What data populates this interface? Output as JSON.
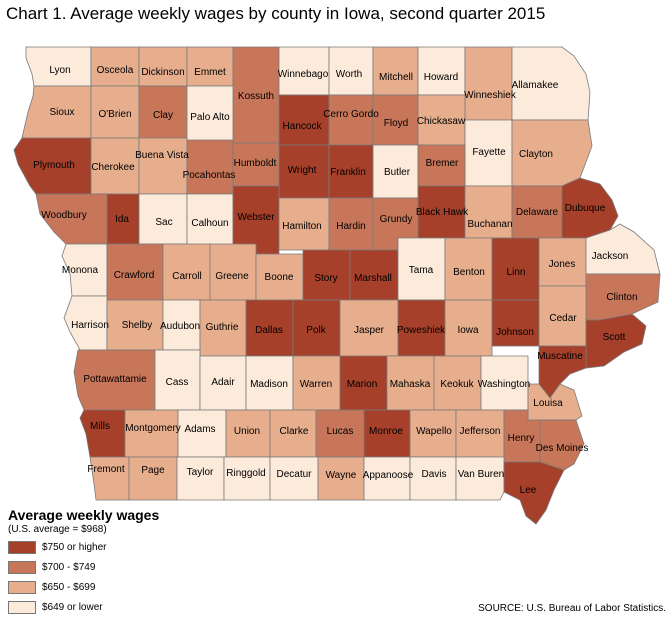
{
  "title": "Chart 1. Average weekly wages by county in Iowa, second quarter 2015",
  "legend": {
    "title": "Average weekly wages",
    "subtitle": "(U.S. average = $968)",
    "items": [
      {
        "label": "$750 or higher",
        "color": "#a6402a"
      },
      {
        "label": "$700 - $749",
        "color": "#c8765a"
      },
      {
        "label": "$650 - $699",
        "color": "#e7ae8e"
      },
      {
        "label": "$649 or lower",
        "color": "#fceadb"
      }
    ]
  },
  "source": "SOURCE: U.S. Bureau of Labor Statistics.",
  "counties": [
    {
      "name": "Lyon",
      "class": 3
    },
    {
      "name": "Osceola",
      "class": 2
    },
    {
      "name": "Dickinson",
      "class": 2
    },
    {
      "name": "Emmet",
      "class": 2
    },
    {
      "name": "Kossuth",
      "class": 1
    },
    {
      "name": "Winnebago",
      "class": 3
    },
    {
      "name": "Worth",
      "class": 3
    },
    {
      "name": "Mitchell",
      "class": 2
    },
    {
      "name": "Howard",
      "class": 3
    },
    {
      "name": "Winneshiek",
      "class": 2
    },
    {
      "name": "Allamakee",
      "class": 3
    },
    {
      "name": "Sioux",
      "class": 2
    },
    {
      "name": "O'Brien",
      "class": 2
    },
    {
      "name": "Clay",
      "class": 1
    },
    {
      "name": "Palo Alto",
      "class": 3
    },
    {
      "name": "Hancock",
      "class": 0
    },
    {
      "name": "Cerro Gordo",
      "class": 1
    },
    {
      "name": "Floyd",
      "class": 1
    },
    {
      "name": "Chickasaw",
      "class": 2
    },
    {
      "name": "Fayette",
      "class": 3
    },
    {
      "name": "Clayton",
      "class": 2
    },
    {
      "name": "Plymouth",
      "class": 0
    },
    {
      "name": "Cherokee",
      "class": 2
    },
    {
      "name": "Buena Vista",
      "class": 2
    },
    {
      "name": "Pocahontas",
      "class": 1
    },
    {
      "name": "Humboldt",
      "class": 1
    },
    {
      "name": "Wright",
      "class": 0
    },
    {
      "name": "Franklin",
      "class": 0
    },
    {
      "name": "Butler",
      "class": 3
    },
    {
      "name": "Bremer",
      "class": 1
    },
    {
      "name": "Black Hawk",
      "class": 0
    },
    {
      "name": "Buchanan",
      "class": 2
    },
    {
      "name": "Delaware",
      "class": 1
    },
    {
      "name": "Dubuque",
      "class": 0
    },
    {
      "name": "Woodbury",
      "class": 1
    },
    {
      "name": "Ida",
      "class": 0
    },
    {
      "name": "Sac",
      "class": 3
    },
    {
      "name": "Calhoun",
      "class": 3
    },
    {
      "name": "Webster",
      "class": 0
    },
    {
      "name": "Hamilton",
      "class": 2
    },
    {
      "name": "Hardin",
      "class": 1
    },
    {
      "name": "Grundy",
      "class": 1
    },
    {
      "name": "Monona",
      "class": 3
    },
    {
      "name": "Crawford",
      "class": 1
    },
    {
      "name": "Carroll",
      "class": 2
    },
    {
      "name": "Greene",
      "class": 2
    },
    {
      "name": "Boone",
      "class": 2
    },
    {
      "name": "Story",
      "class": 0
    },
    {
      "name": "Marshall",
      "class": 0
    },
    {
      "name": "Tama",
      "class": 3
    },
    {
      "name": "Benton",
      "class": 2
    },
    {
      "name": "Linn",
      "class": 0
    },
    {
      "name": "Jones",
      "class": 2
    },
    {
      "name": "Jackson",
      "class": 3
    },
    {
      "name": "Clinton",
      "class": 1
    },
    {
      "name": "Harrison",
      "class": 3
    },
    {
      "name": "Shelby",
      "class": 2
    },
    {
      "name": "Audubon",
      "class": 3
    },
    {
      "name": "Guthrie",
      "class": 2
    },
    {
      "name": "Dallas",
      "class": 0
    },
    {
      "name": "Polk",
      "class": 0
    },
    {
      "name": "Jasper",
      "class": 2
    },
    {
      "name": "Poweshiek",
      "class": 0
    },
    {
      "name": "Iowa",
      "class": 2
    },
    {
      "name": "Johnson",
      "class": 0
    },
    {
      "name": "Cedar",
      "class": 2
    },
    {
      "name": "Scott",
      "class": 0
    },
    {
      "name": "Muscatine",
      "class": 0
    },
    {
      "name": "Pottawattamie",
      "class": 1
    },
    {
      "name": "Cass",
      "class": 3
    },
    {
      "name": "Adair",
      "class": 3
    },
    {
      "name": "Madison",
      "class": 3
    },
    {
      "name": "Warren",
      "class": 2
    },
    {
      "name": "Marion",
      "class": 0
    },
    {
      "name": "Mahaska",
      "class": 2
    },
    {
      "name": "Keokuk",
      "class": 2
    },
    {
      "name": "Washington",
      "class": 3
    },
    {
      "name": "Louisa",
      "class": 2
    },
    {
      "name": "Mills",
      "class": 0
    },
    {
      "name": "Montgomery",
      "class": 2
    },
    {
      "name": "Adams",
      "class": 3
    },
    {
      "name": "Union",
      "class": 2
    },
    {
      "name": "Clarke",
      "class": 2
    },
    {
      "name": "Lucas",
      "class": 1
    },
    {
      "name": "Monroe",
      "class": 0
    },
    {
      "name": "Wapello",
      "class": 2
    },
    {
      "name": "Jefferson",
      "class": 2
    },
    {
      "name": "Henry",
      "class": 1
    },
    {
      "name": "Des Moines",
      "class": 1
    },
    {
      "name": "Fremont",
      "class": 2
    },
    {
      "name": "Page",
      "class": 2
    },
    {
      "name": "Taylor",
      "class": 3
    },
    {
      "name": "Ringgold",
      "class": 3
    },
    {
      "name": "Decatur",
      "class": 3
    },
    {
      "name": "Wayne",
      "class": 2
    },
    {
      "name": "Appanoose",
      "class": 3
    },
    {
      "name": "Davis",
      "class": 3
    },
    {
      "name": "Van Buren",
      "class": 3
    },
    {
      "name": "Lee",
      "class": 0
    }
  ]
}
